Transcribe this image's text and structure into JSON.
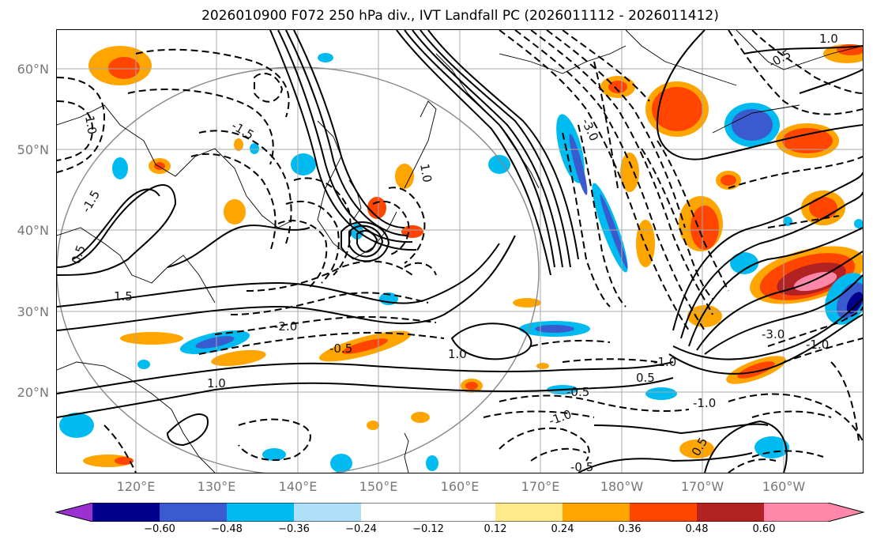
{
  "title": "2026010900 F072 250 hPa div., IVT Landfall PC (2026011112 - 2026011412)",
  "lat_labels": [
    "60°N",
    "50°N",
    "40°N",
    "30°N",
    "20°N"
  ],
  "lon_labels": [
    "120°E",
    "130°E",
    "140°E",
    "150°E",
    "160°E",
    "170°E",
    "180°W",
    "170°W",
    "160°W"
  ],
  "colorbar": {
    "colors": [
      "#9b32d0",
      "#00008c",
      "#3a5ad0",
      "#00bbf0",
      "#aee0f8",
      "#ffffff",
      "#ffe98a",
      "#ffa500",
      "#ff4500",
      "#b22222",
      "#ff88aa"
    ],
    "ticks": [
      "−0.60",
      "−0.48",
      "−0.36",
      "−0.24",
      "−0.12",
      "0.12",
      "0.24",
      "0.36",
      "0.48",
      "0.60"
    ]
  },
  "contour_labels": [
    "-1.0",
    "-1.5",
    "0.5",
    "1.0",
    "-2.0",
    "-0.5",
    "1.0",
    "-1.0",
    "0.5",
    "-0.5",
    "-1.0",
    "-3.0",
    "0.5",
    "-1.0",
    "-0.5",
    "-3.0",
    "1.0",
    "-0.5",
    "1.0",
    "1.5",
    "-1.5",
    "-1.0"
  ]
}
